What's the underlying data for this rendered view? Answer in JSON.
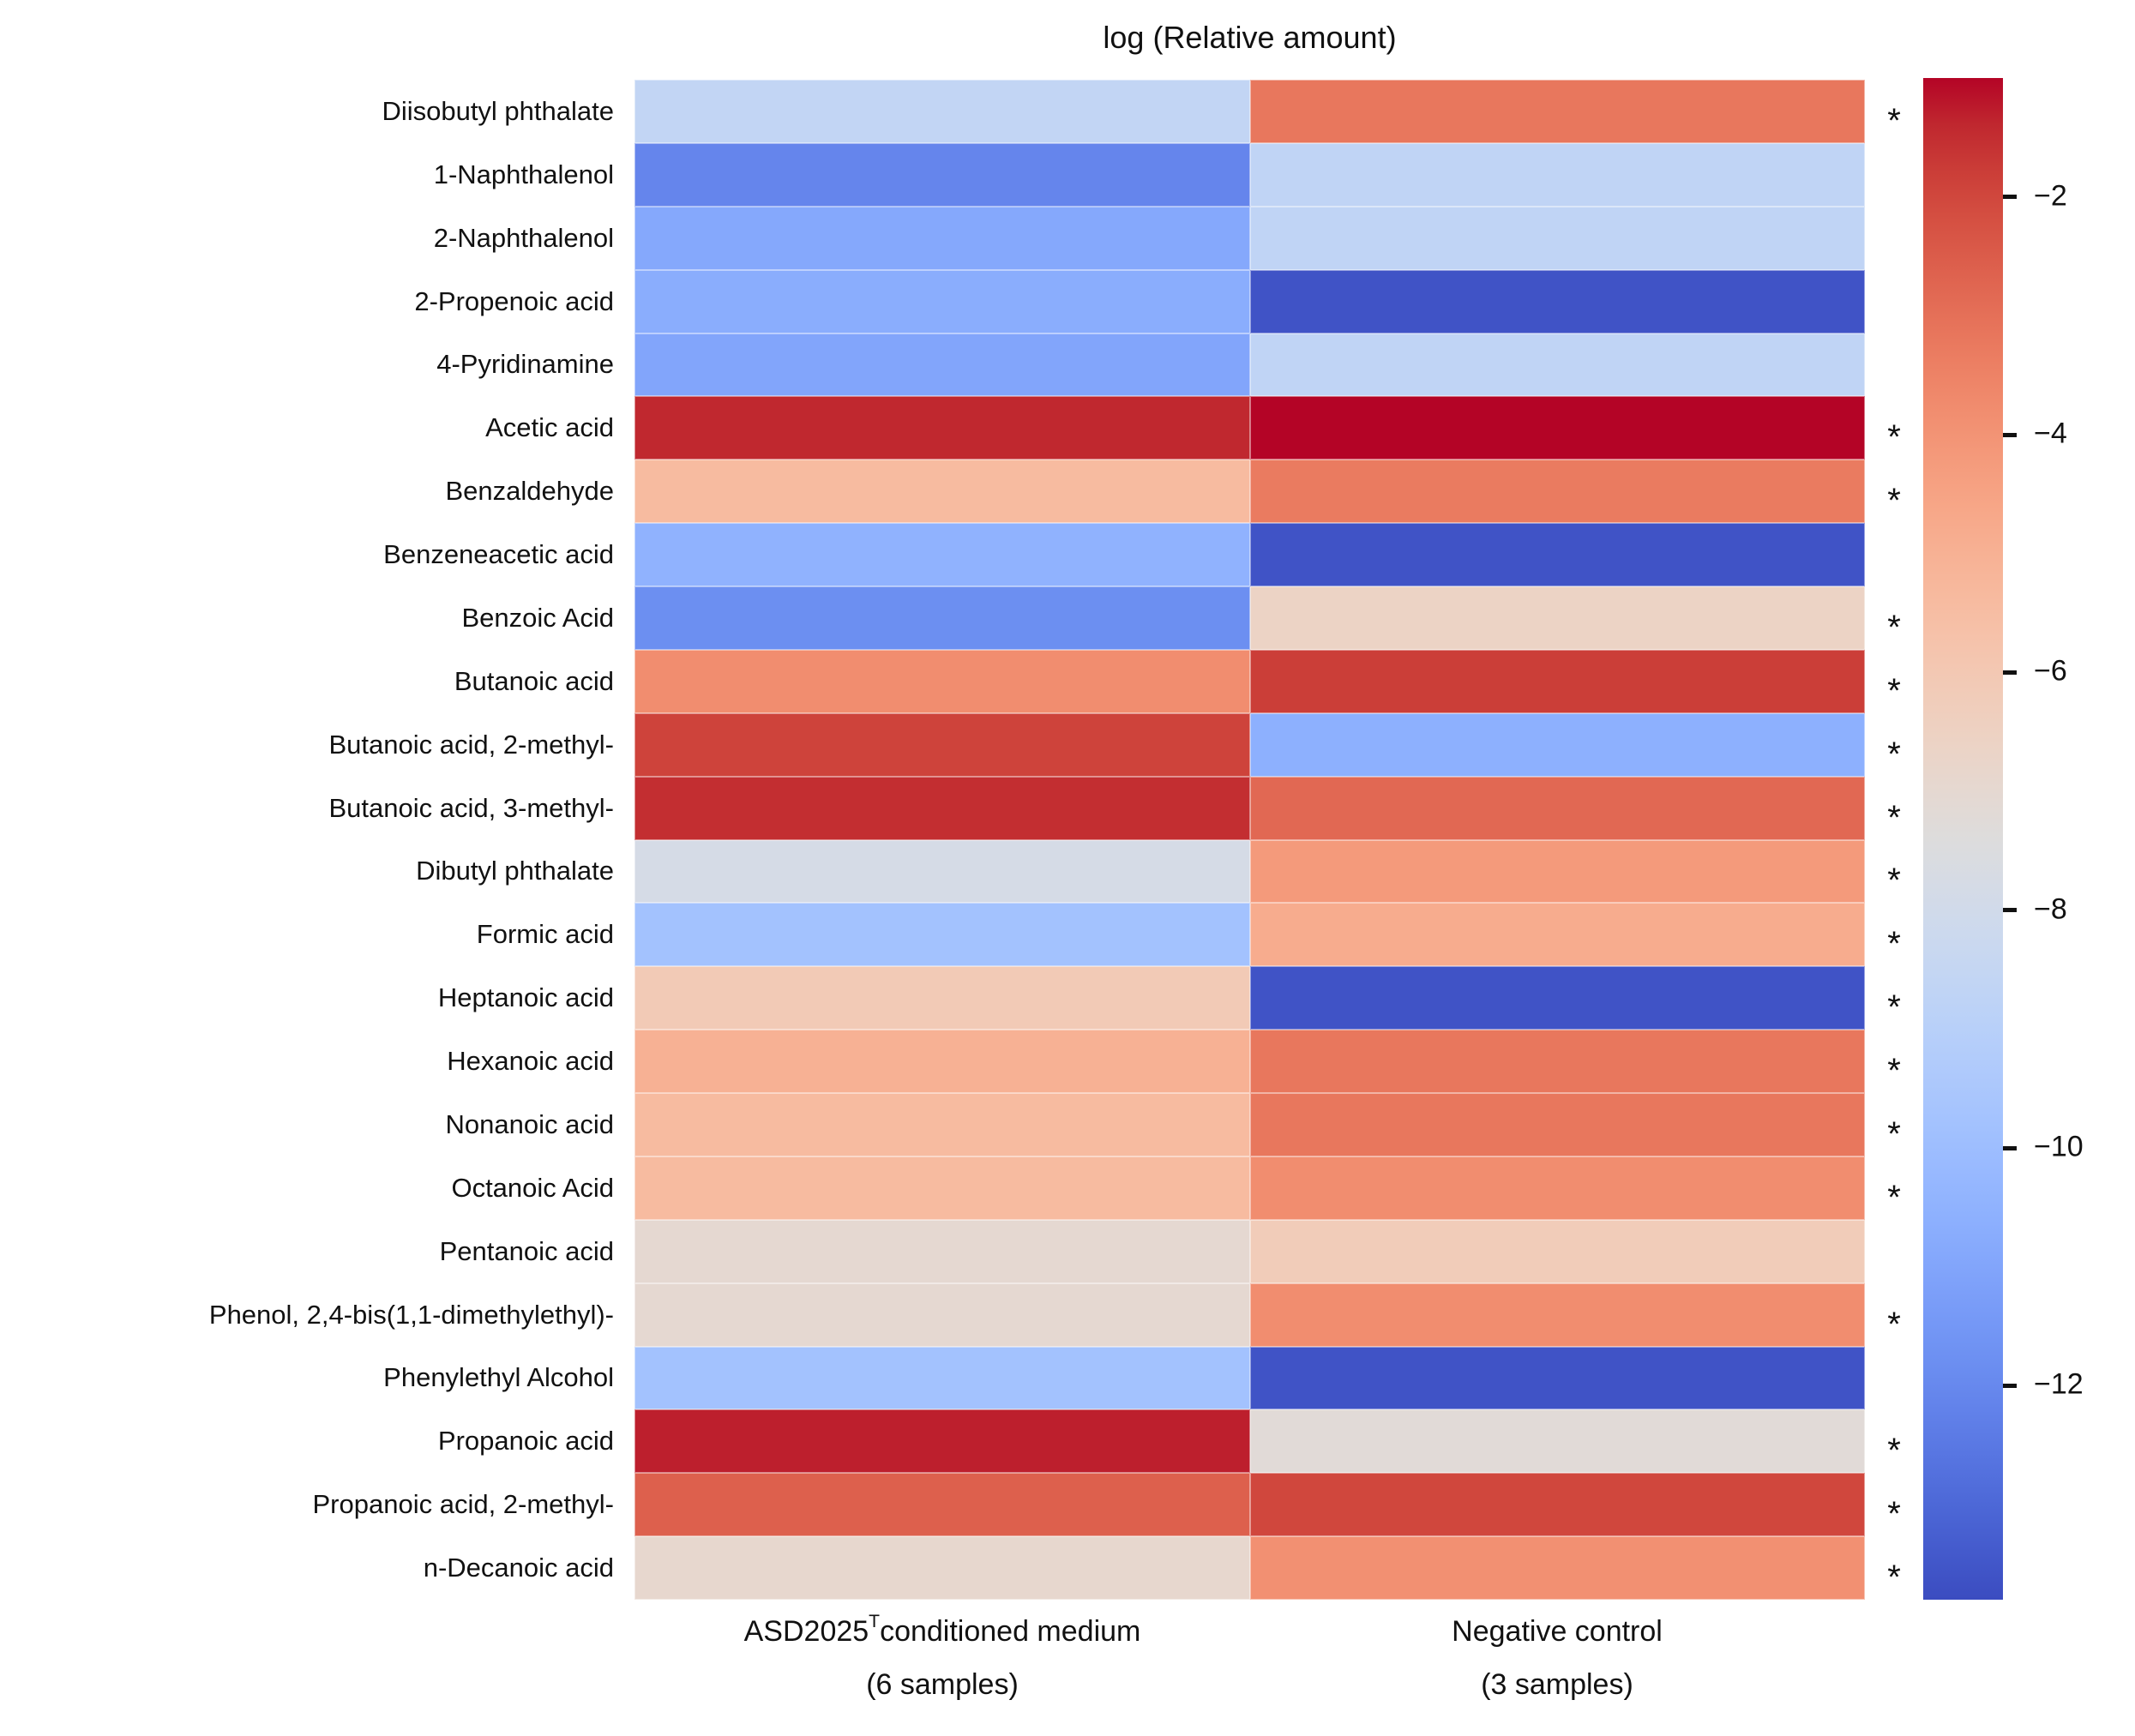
{
  "chart_data": {
    "type": "heatmap",
    "title": "log (Relative amount)",
    "colormap": "coolwarm",
    "significance_marker": "*",
    "legend_position": "right-colorbar",
    "grid": false,
    "colorbar": {
      "vmin": -13.8,
      "vmax": -1.0,
      "ticks": [
        {
          "value": -2,
          "label": "−2"
        },
        {
          "value": -4,
          "label": "−4"
        },
        {
          "value": -6,
          "label": "−6"
        },
        {
          "value": -8,
          "label": "−8"
        },
        {
          "value": -10,
          "label": "−10"
        },
        {
          "value": -12,
          "label": "−12"
        }
      ]
    },
    "columns": [
      {
        "name_prefix": "ASD2025",
        "name_sup": "T",
        "name_suffix": " conditioned medium",
        "samples_line": "(6 samples)"
      },
      {
        "name_prefix": "Negative control",
        "name_sup": "",
        "name_suffix": "",
        "samples_line": "(3 samples)"
      }
    ],
    "rows": [
      {
        "label": "Diisobutyl phthalate",
        "values": [
          -8.6,
          -3.2
        ],
        "significant": true
      },
      {
        "label": "1-Naphthalenol",
        "values": [
          -12.1,
          -8.7
        ],
        "significant": false
      },
      {
        "label": "2-Naphthalenol",
        "values": [
          -10.9,
          -8.7
        ],
        "significant": false
      },
      {
        "label": "2-Propenoic acid",
        "values": [
          -10.7,
          -13.6
        ],
        "significant": false
      },
      {
        "label": "4-Pyridinamine",
        "values": [
          -11.0,
          -8.7
        ],
        "significant": false
      },
      {
        "label": "Acetic acid",
        "values": [
          -1.4,
          -1.0
        ],
        "significant": true
      },
      {
        "label": "Benzaldehyde",
        "values": [
          -5.4,
          -3.3
        ],
        "significant": true
      },
      {
        "label": "Benzeneacetic acid",
        "values": [
          -10.5,
          -13.6
        ],
        "significant": false
      },
      {
        "label": "Benzoic Acid",
        "values": [
          -11.8,
          -6.6
        ],
        "significant": true
      },
      {
        "label": "Butanoic acid",
        "values": [
          -3.8,
          -1.8
        ],
        "significant": true
      },
      {
        "label": "Butanoic acid, 2-methyl-",
        "values": [
          -1.9,
          -10.6
        ],
        "significant": true
      },
      {
        "label": "Butanoic acid, 3-methyl-",
        "values": [
          -1.5,
          -2.8
        ],
        "significant": true
      },
      {
        "label": "Dibutyl phthalate",
        "values": [
          -7.8,
          -4.2
        ],
        "significant": true
      },
      {
        "label": "Formic acid",
        "values": [
          -9.8,
          -4.8
        ],
        "significant": true
      },
      {
        "label": "Heptanoic acid",
        "values": [
          -6.1,
          -13.6
        ],
        "significant": true
      },
      {
        "label": "Hexanoic acid",
        "values": [
          -5.0,
          -3.2
        ],
        "significant": true
      },
      {
        "label": "Nonanoic acid",
        "values": [
          -5.4,
          -3.2
        ],
        "significant": true
      },
      {
        "label": "Octanoic Acid",
        "values": [
          -5.4,
          -3.8
        ],
        "significant": true
      },
      {
        "label": "Pentanoic acid",
        "values": [
          -7.0,
          -6.2
        ],
        "significant": false
      },
      {
        "label": "Phenol, 2,4-bis(1,1-dimethylethyl)-",
        "values": [
          -7.0,
          -3.8
        ],
        "significant": true
      },
      {
        "label": "Phenylethyl Alcohol",
        "values": [
          -9.8,
          -13.6
        ],
        "significant": false
      },
      {
        "label": "Propanoic acid",
        "values": [
          -1.3,
          -7.2
        ],
        "significant": true
      },
      {
        "label": "Propanoic acid, 2-methyl-",
        "values": [
          -2.6,
          -2.0
        ],
        "significant": true
      },
      {
        "label": "n-Decanoic acid",
        "values": [
          -6.9,
          -3.9
        ],
        "significant": true
      }
    ]
  }
}
